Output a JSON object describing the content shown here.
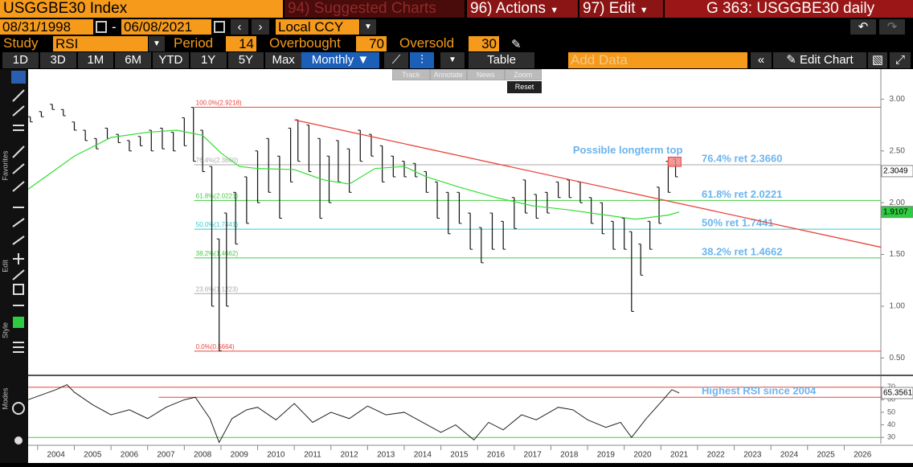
{
  "header": {
    "security": "USGGBE30 Index",
    "suggested": "94) Suggested Charts",
    "actions": "96) Actions",
    "edit": "97) Edit",
    "chart_id": "G 363: USGGBE30 daily"
  },
  "controls": {
    "start_date": "08/31/1998",
    "end_date": "06/08/2021",
    "currency": "Local CCY",
    "study_label": "Study",
    "study": "RSI",
    "period_label": "Period",
    "period": "14",
    "overbought_label": "Overbought",
    "overbought": "70",
    "oversold_label": "Oversold",
    "oversold": "30"
  },
  "toolbar": {
    "ranges": [
      "1D",
      "3D",
      "1M",
      "6M",
      "YTD",
      "1Y",
      "5Y",
      "Max"
    ],
    "frequency": "Monthly",
    "table": "Table",
    "add_data": "Add Data",
    "edit_chart": "Edit Chart"
  },
  "chart_tools": {
    "buttons": [
      "Track",
      "Annotate",
      "News",
      "Zoom"
    ],
    "reset": "Reset"
  },
  "sidebar": [
    "Favorites",
    "Edit",
    "Style",
    "Modes"
  ],
  "chart_data": [
    {
      "type": "hilo",
      "color": "#111111",
      "x": [
        2003.8,
        2004.1,
        2004.4,
        2004.7,
        2005.0,
        2005.3,
        2005.6,
        2005.9,
        2006.2,
        2006.5,
        2006.8,
        2007.1,
        2007.4,
        2007.7,
        2008.0,
        2008.25,
        2008.5,
        2008.75,
        2008.95,
        2009.15,
        2009.4,
        2009.7,
        2010.0,
        2010.3,
        2010.6,
        2010.9,
        2011.1,
        2011.4,
        2011.7,
        2011.95,
        2012.2,
        2012.5,
        2012.8,
        2013.1,
        2013.4,
        2013.7,
        2014.0,
        2014.3,
        2014.6,
        2014.9,
        2015.2,
        2015.5,
        2015.8,
        2016.1,
        2016.4,
        2016.7,
        2017.0,
        2017.3,
        2017.6,
        2017.9,
        2018.2,
        2018.5,
        2018.8,
        2019.1,
        2019.4,
        2019.7,
        2020.0,
        2020.2,
        2020.45,
        2020.7,
        2020.95,
        2021.2,
        2021.4
      ],
      "high": [
        2.83,
        2.88,
        2.95,
        2.9,
        2.78,
        2.7,
        2.62,
        2.72,
        2.66,
        2.6,
        2.64,
        2.7,
        2.72,
        2.68,
        2.82,
        2.92,
        2.7,
        2.35,
        1.65,
        1.9,
        2.1,
        2.25,
        2.5,
        2.62,
        2.45,
        2.72,
        2.8,
        2.75,
        2.62,
        2.45,
        2.6,
        2.52,
        2.7,
        2.66,
        2.55,
        2.45,
        2.4,
        2.38,
        2.3,
        2.2,
        2.1,
        2.1,
        1.9,
        1.76,
        1.9,
        1.82,
        2.05,
        2.22,
        2.08,
        2.1,
        2.2,
        2.22,
        2.2,
        2.05,
        2.0,
        1.82,
        1.85,
        1.72,
        1.6,
        1.82,
        2.15,
        2.4,
        2.42
      ],
      "low": [
        2.78,
        2.83,
        2.9,
        2.84,
        2.7,
        2.6,
        2.52,
        2.62,
        2.58,
        2.5,
        2.55,
        2.5,
        2.52,
        2.5,
        2.55,
        2.4,
        2.3,
        1.0,
        0.57,
        1.0,
        1.6,
        1.8,
        2.0,
        2.1,
        1.85,
        2.2,
        2.4,
        2.3,
        1.85,
        2.0,
        2.2,
        2.1,
        2.4,
        2.45,
        2.2,
        2.25,
        2.25,
        2.25,
        2.1,
        1.85,
        1.7,
        1.8,
        1.55,
        1.42,
        1.55,
        1.55,
        1.75,
        1.9,
        1.85,
        1.9,
        2.05,
        2.05,
        2.0,
        1.8,
        1.7,
        1.55,
        1.55,
        0.95,
        1.3,
        1.55,
        1.8,
        2.1,
        2.25
      ],
      "moving_average": {
        "color": "#33dd33",
        "x": [
          2003.74,
          2005,
          2006,
          2007,
          2007.8,
          2008.5,
          2009,
          2009.5,
          2010,
          2011,
          2011.8,
          2012.5,
          2013.2,
          2014,
          2014.6,
          2015.5,
          2016.5,
          2017.5,
          2018.5,
          2019.5,
          2020.3,
          2021.2,
          2021.5
        ],
        "values": [
          2.13,
          2.45,
          2.63,
          2.68,
          2.7,
          2.65,
          2.48,
          2.35,
          2.33,
          2.32,
          2.22,
          2.18,
          2.33,
          2.35,
          2.25,
          2.15,
          2.05,
          1.97,
          1.93,
          1.88,
          1.84,
          1.88,
          1.91
        ]
      },
      "trendline": {
        "color": "#e8453c",
        "x": [
          2011.0,
          2027
        ],
        "values": [
          2.8,
          1.57
        ]
      },
      "fib_start": 2008.27,
      "fib_levels": [
        {
          "label": "100.0%(2.9218)",
          "value": 2.9218,
          "color": "#e8453c"
        },
        {
          "label": "76.4%(2.3660)",
          "value": 2.366,
          "color": "#aaaaaa",
          "right_label": "76.4% ret 2.3660"
        },
        {
          "label": "61.8%(2.0221)",
          "value": 2.0221,
          "color": "#44cc44",
          "right_label": "61.8% ret 2.0221"
        },
        {
          "label": "50.0%(1.7441)",
          "value": 1.7441,
          "color": "#33cccc",
          "right_label": "50% ret 1.7441"
        },
        {
          "label": "38.2%(1.4662)",
          "value": 1.4662,
          "color": "#44cc44",
          "right_label": "38.2% ret 1.4662"
        },
        {
          "label": "23.6%(1.1223)",
          "value": 1.1223,
          "color": "#aaaaaa"
        },
        {
          "label": "0.0%(0.5664)",
          "value": 0.5664,
          "color": "#e8453c"
        }
      ],
      "annotation": {
        "text": "Possible longterm top",
        "x": [
          2021.2,
          2021.55
        ],
        "y": [
          2.35,
          2.44
        ]
      },
      "last_price": 2.3049,
      "ma_last": 1.9107,
      "xlim": [
        2003.74,
        2027
      ],
      "ylim": [
        0.34,
        3.29
      ],
      "yticks": [
        {
          "value": 0.5,
          "label": "0.50"
        },
        {
          "value": 1,
          "label": "1.00"
        },
        {
          "value": 1.5,
          "label": "1.50"
        },
        {
          "value": 2,
          "label": "2.00"
        },
        {
          "value": 2.5,
          "label": "2.50"
        },
        {
          "value": 3,
          "label": "3.00"
        }
      ],
      "xticks": [
        2004,
        2005,
        2006,
        2007,
        2008,
        2009,
        2010,
        2011,
        2012,
        2013,
        2014,
        2015,
        2016,
        2017,
        2018,
        2019,
        2020,
        2021,
        2022,
        2023,
        2024,
        2025,
        2026
      ]
    },
    {
      "type": "line",
      "color": "#222222",
      "x": [
        2003.74,
        2004.5,
        2004.8,
        2005,
        2005.5,
        2006,
        2006.5,
        2007,
        2007.5,
        2008,
        2008.3,
        2008.7,
        2008.95,
        2009.3,
        2009.7,
        2010,
        2010.5,
        2011,
        2011.5,
        2012,
        2012.5,
        2013,
        2013.5,
        2014,
        2014.5,
        2015,
        2015.4,
        2015.9,
        2016.3,
        2016.7,
        2017.2,
        2017.6,
        2018.2,
        2018.6,
        2019,
        2019.5,
        2019.9,
        2020.2,
        2020.6,
        2021,
        2021.3,
        2021.5
      ],
      "values": [
        60,
        68,
        72,
        66,
        56,
        48,
        52,
        45,
        54,
        60,
        62,
        45,
        26,
        45,
        52,
        54,
        44,
        57,
        42,
        50,
        45,
        55,
        48,
        50,
        42,
        34,
        40,
        28,
        42,
        36,
        48,
        44,
        54,
        52,
        44,
        38,
        42,
        30,
        45,
        58,
        68,
        65.3561
      ],
      "overbought": 70,
      "oversold": 30,
      "reference": {
        "value": 62,
        "start": 2007.3,
        "label": "Highest RSI since 2004"
      },
      "last_value": 65.3561,
      "xlim": [
        2003.74,
        2027
      ],
      "ylim": [
        25,
        77.5
      ],
      "yticks": [
        30,
        40,
        50,
        60,
        70
      ]
    }
  ]
}
